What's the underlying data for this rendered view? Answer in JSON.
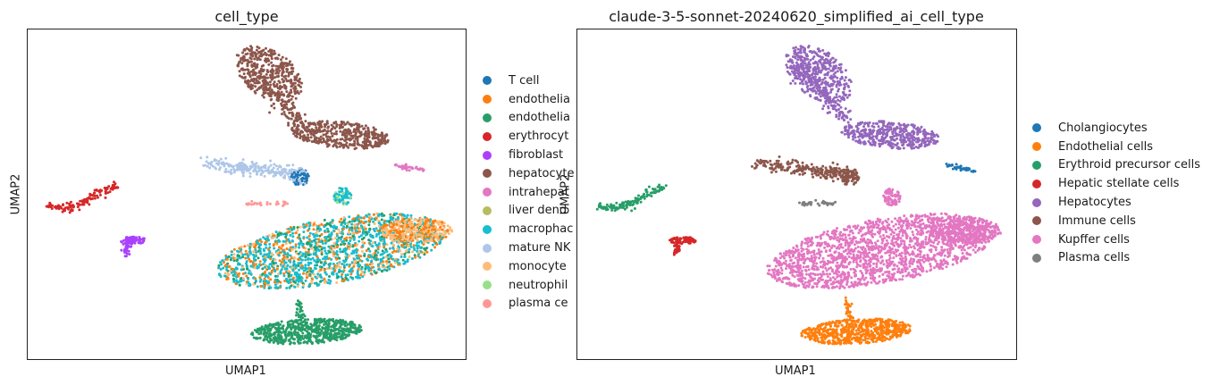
{
  "chart_data": [
    {
      "type": "scatter",
      "title": "cell_type",
      "xlabel": "UMAP1",
      "ylabel": "UMAP2",
      "grid": false,
      "legend": "right",
      "legend_entries": [
        {
          "label": "T cell",
          "color": "#1f77b4"
        },
        {
          "label": "endothelia",
          "color": "#ff7f0e"
        },
        {
          "label": "endothelia",
          "color": "#279e68"
        },
        {
          "label": "erythrocyt",
          "color": "#d62728"
        },
        {
          "label": "fibroblast",
          "color": "#aa40fc"
        },
        {
          "label": "hepatocyte",
          "color": "#8c564b"
        },
        {
          "label": "intrahepat",
          "color": "#e377c2"
        },
        {
          "label": "liver dend",
          "color": "#b5bd61"
        },
        {
          "label": "macrophac",
          "color": "#17becf"
        },
        {
          "label": "mature NK",
          "color": "#aec7e8"
        },
        {
          "label": "monocyte",
          "color": "#ffbb78"
        },
        {
          "label": "neutrophil",
          "color": "#98df8a"
        },
        {
          "label": "plasma ce",
          "color": "#ff9896"
        }
      ]
    },
    {
      "type": "scatter",
      "title": "claude-3-5-sonnet-20240620_simplified_ai_cell_type",
      "xlabel": "UMAP1",
      "ylabel": "UMAP2",
      "grid": false,
      "legend": "right",
      "legend_entries": [
        {
          "label": "Cholangiocytes",
          "color": "#1f77b4"
        },
        {
          "label": "Endothelial cells",
          "color": "#ff7f0e"
        },
        {
          "label": "Erythroid precursor cells",
          "color": "#279e68"
        },
        {
          "label": "Hepatic stellate cells",
          "color": "#d62728"
        },
        {
          "label": "Hepatocytes",
          "color": "#9467bd"
        },
        {
          "label": "Immune cells",
          "color": "#8c564b"
        },
        {
          "label": "Kupffer cells",
          "color": "#e377c2"
        },
        {
          "label": "Plasma cells",
          "color": "#7f7f7f"
        }
      ]
    }
  ]
}
